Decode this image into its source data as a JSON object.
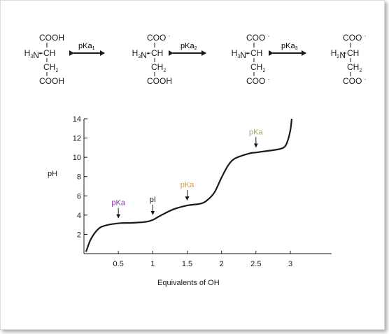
{
  "colors": {
    "purple": "#8a3a9a",
    "orange": "#e39a36",
    "green": "#8ab85a",
    "ink": "#1a1a1a"
  },
  "equilibria": [
    {
      "label": "pKa",
      "sub": "1",
      "color": "#8a3a9a"
    },
    {
      "label": "pKa",
      "sub": "2",
      "color": "#e39a36"
    },
    {
      "label": "pKa",
      "sub": "3",
      "color": "#8ab85a"
    }
  ],
  "species": [
    {
      "top": "COOH",
      "amine": "H3N+",
      "ch": "CH",
      "ch2": "CH2",
      "bottom": "COOH"
    },
    {
      "top": "COO -",
      "amine": "H3N+",
      "ch": "CH",
      "ch2": "CH2",
      "bottom": "COOH"
    },
    {
      "top": "COO -",
      "amine": "H3N+",
      "ch": "CH",
      "ch2": "CH2",
      "bottom": "COO -"
    },
    {
      "top": "COO -",
      "amine": "H2N",
      "ch": "CH",
      "ch2": "CH2",
      "bottom": "COO -"
    }
  ],
  "chart_data": {
    "type": "line",
    "xlabel": "Equivalents of OH",
    "ylabel": "pH",
    "xlim": [
      0,
      3.6
    ],
    "ylim": [
      0,
      14
    ],
    "xticks": [
      0.5,
      1,
      1.5,
      2,
      2.5,
      3
    ],
    "yticks": [
      2,
      4,
      6,
      8,
      10,
      12,
      14
    ],
    "x": [
      0.03,
      0.1,
      0.2,
      0.3,
      0.5,
      0.7,
      0.9,
      1.0,
      1.1,
      1.3,
      1.5,
      1.7,
      1.8,
      1.9,
      2.0,
      2.1,
      2.2,
      2.4,
      2.5,
      2.6,
      2.8,
      2.9,
      2.95,
      3.0,
      3.02
    ],
    "y": [
      0.2,
      1.5,
      2.5,
      2.9,
      3.15,
      3.2,
      3.3,
      3.5,
      3.9,
      4.6,
      5.0,
      5.2,
      5.6,
      6.4,
      7.9,
      9.2,
      9.9,
      10.4,
      10.5,
      10.6,
      10.8,
      11.0,
      11.5,
      12.8,
      14.0
    ],
    "annotations": [
      {
        "text": "pKa",
        "x": 0.5,
        "y": 3.15,
        "color": "#8a3a9a"
      },
      {
        "text": "pI",
        "x": 1.0,
        "y": 3.5,
        "color": "#1a1a1a"
      },
      {
        "text": "pKa",
        "x": 1.5,
        "y": 5.0,
        "color": "#e39a36"
      },
      {
        "text": "pKa",
        "x": 2.5,
        "y": 10.5,
        "color": "#8ab85a"
      }
    ]
  }
}
